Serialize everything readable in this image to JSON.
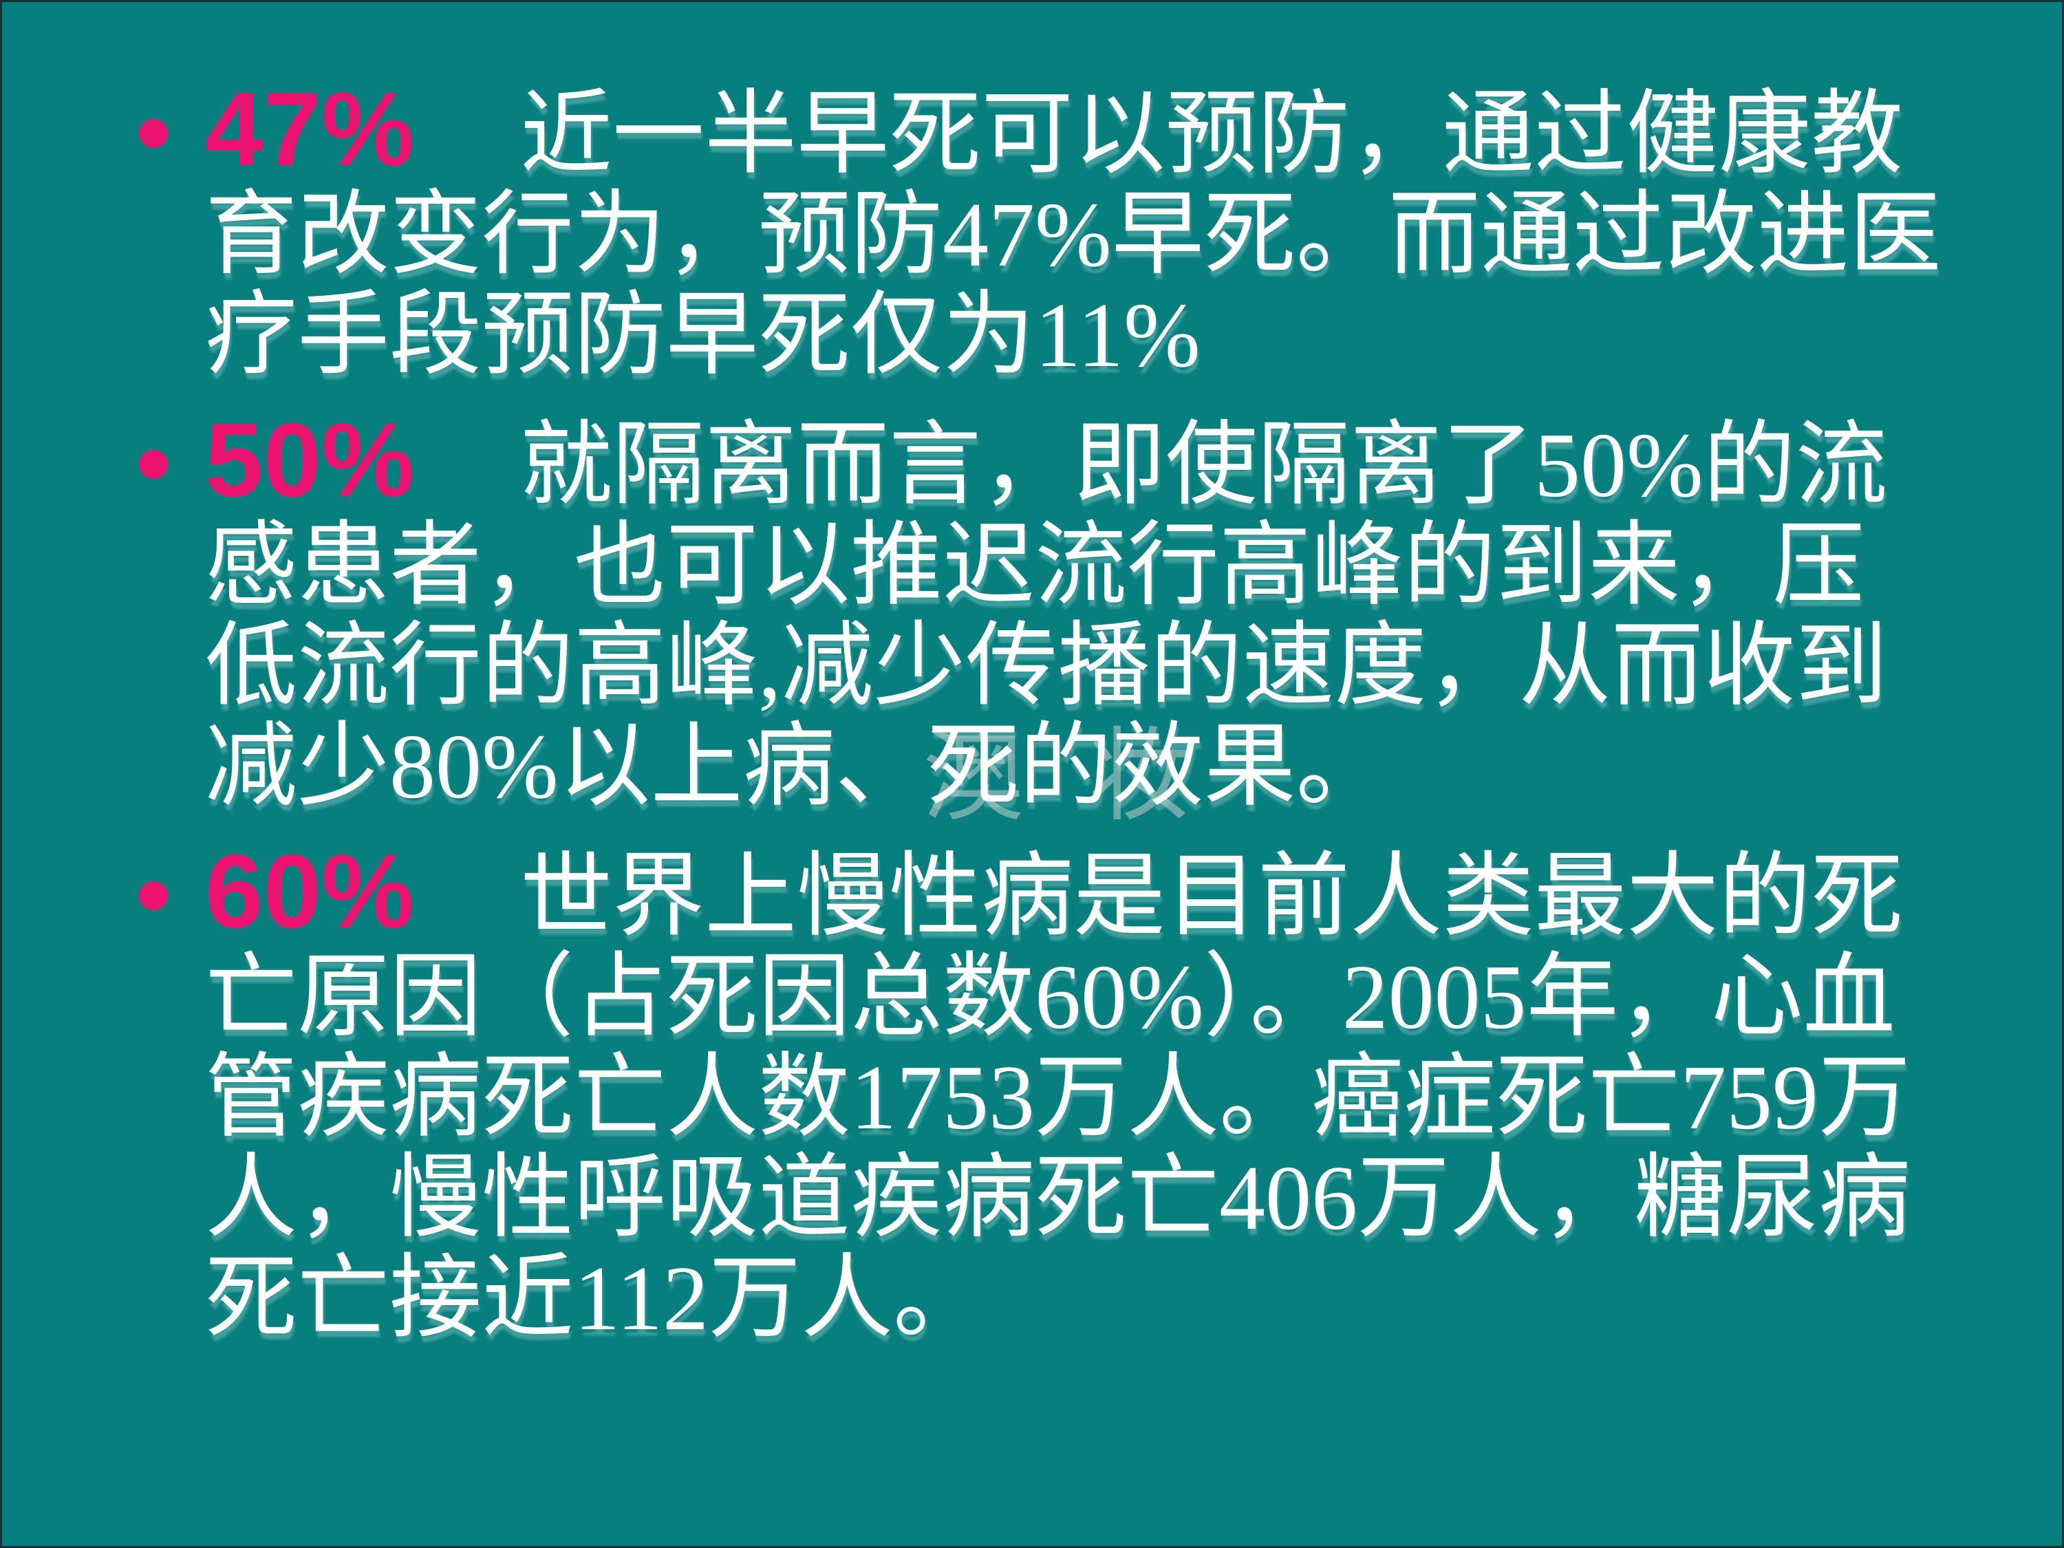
{
  "slide": {
    "colors": {
      "background": "#077F7E",
      "accent": "#EC136E",
      "text": "#FFFFFF",
      "border": "#143333"
    },
    "watermark": "澳 妆",
    "bullets": [
      {
        "label": "47%",
        "text": "近一半早死可以预防，通过健康教育改变行为，预防47%早死。而通过改进医疗手段预防早死仅为11%"
      },
      {
        "label": "50%",
        "text": "就隔离而言，即使隔离了50%的流感患者，也可以推迟流行高峰的到来，压低流行的高峰,减少传播的速度，从而收到减少80%以上病、死的效果。"
      },
      {
        "label": "60%",
        "text": "世界上慢性病是目前人类最大的死亡原因（占死因总数60%）。2005年，心血管疾病死亡人数1753万人。癌症死亡759万人，慢性呼吸道疾病死亡406万人，糖尿病死亡接近112万人。"
      }
    ]
  }
}
